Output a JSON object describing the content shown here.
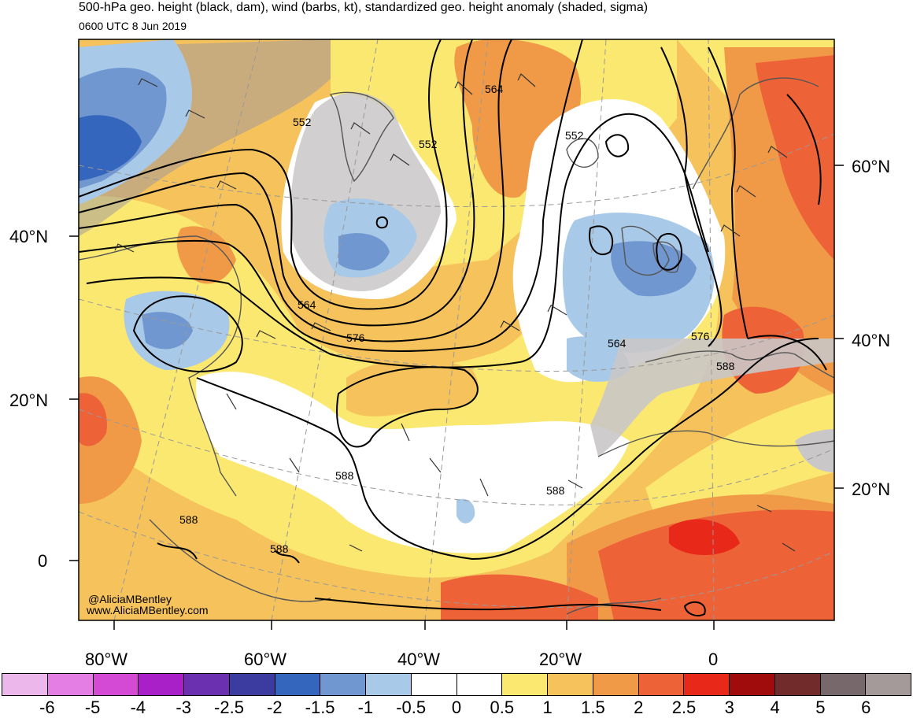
{
  "header": {
    "title": "500-hPa geo. height (black, dam), wind (barbs, kt), standardized geo. height anomaly (shaded, sigma)",
    "valid_time": "0600 UTC 8 Jun 2019"
  },
  "axes": {
    "lon_labels": [
      "80°W",
      "60°W",
      "40°W",
      "20°W",
      "0"
    ],
    "lat_labels_left": [
      "40°N",
      "20°N",
      "0"
    ],
    "lat_labels_right": [
      "60°N",
      "40°N",
      "20°N"
    ]
  },
  "contour_labels": [
    "552",
    "552",
    "564",
    "552",
    "564",
    "576",
    "564",
    "576",
    "588",
    "588",
    "588",
    "588",
    "588"
  ],
  "credit": {
    "handle": "@AliciaMBentley",
    "website": "www.AliciaMBentley.com"
  },
  "colorbar": {
    "ticks": [
      "-6",
      "-5",
      "-4",
      "-3",
      "-2.5",
      "-2",
      "-1.5",
      "-1",
      "-0.5",
      "0",
      "0.5",
      "1",
      "1.5",
      "2",
      "2.5",
      "3",
      "4",
      "5",
      "6"
    ],
    "colors": [
      "#ecb8ec",
      "#e47ee4",
      "#d44ad4",
      "#aa20c8",
      "#6a30b0",
      "#3b3ba0",
      "#3566bd",
      "#7097d0",
      "#a9c9e8",
      "#ffffff",
      "#ffffff",
      "#fbe870",
      "#f5c25c",
      "#f09a48",
      "#ee6238",
      "#e82818",
      "#a00c0c",
      "#722b2b",
      "#77696b",
      "#a49a9a"
    ]
  },
  "colors": {
    "contour": "#000000",
    "coastline": "#555555",
    "graticule": "#999999"
  }
}
